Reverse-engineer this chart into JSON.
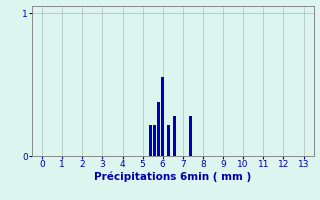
{
  "title": "",
  "xlabel": "Précipitations 6min ( mm )",
  "ylabel": "",
  "xlim": [
    -0.5,
    13.5
  ],
  "ylim": [
    0,
    1.05
  ],
  "yticks": [
    0,
    1
  ],
  "xticks": [
    0,
    1,
    2,
    3,
    4,
    5,
    6,
    7,
    8,
    9,
    10,
    11,
    12,
    13
  ],
  "bar_positions": [
    5.4,
    5.6,
    5.8,
    6.0,
    6.3,
    6.6,
    7.4
  ],
  "bar_heights": [
    0.22,
    0.22,
    0.38,
    0.55,
    0.22,
    0.28,
    0.28
  ],
  "bar_width": 0.14,
  "bar_color": "#0000bb",
  "bg_color": "#dcf5ef",
  "grid_color": "#b0c8c0",
  "tick_color": "#0000aa",
  "label_color": "#0000aa",
  "axis_color": "#888888"
}
